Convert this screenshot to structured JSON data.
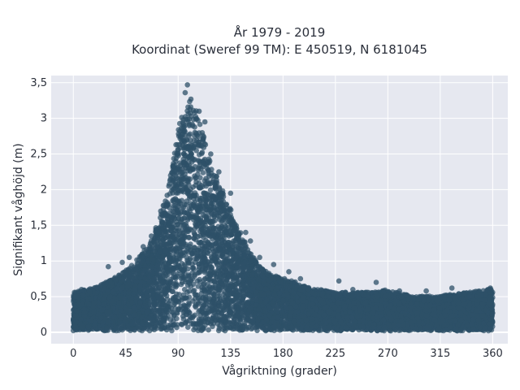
{
  "chart_data": {
    "type": "scatter",
    "title_lines": [
      "År 1979 - 2019",
      "Koordinat (Sweref 99 TM): E 450519, N 6181045"
    ],
    "xlabel": "Vågriktning (grader)",
    "ylabel": "Signifikant våghöjd (m)",
    "xlim": [
      -19,
      373
    ],
    "ylim": [
      -0.16,
      3.6
    ],
    "x_ticks": [
      0,
      45,
      90,
      135,
      180,
      225,
      270,
      315,
      360
    ],
    "x_tick_labels": [
      "0",
      "45",
      "90",
      "135",
      "180",
      "225",
      "270",
      "315",
      "360"
    ],
    "y_ticks": [
      0,
      0.5,
      1,
      1.5,
      2,
      2.5,
      3,
      3.5
    ],
    "y_tick_labels": [
      "0",
      "0,5",
      "1",
      "1,5",
      "2",
      "2,5",
      "3",
      "3,5"
    ],
    "grid": true,
    "marker_color": "#2e5068",
    "background_color": "#e6e8f0",
    "envelope": {
      "direction": [
        0,
        15,
        30,
        45,
        60,
        75,
        85,
        90,
        95,
        100,
        105,
        110,
        120,
        130,
        140,
        150,
        160,
        170,
        180,
        190,
        200,
        225,
        250,
        270,
        290,
        315,
        340,
        360
      ],
      "wave_height": [
        0.55,
        0.6,
        0.7,
        0.85,
        1.1,
        1.6,
        2.3,
        2.8,
        3.1,
        3.3,
        3.1,
        2.8,
        2.3,
        1.9,
        1.5,
        1.15,
        0.9,
        0.8,
        0.75,
        0.7,
        0.62,
        0.55,
        0.55,
        0.58,
        0.5,
        0.5,
        0.55,
        0.6
      ]
    },
    "notable_points": [
      {
        "x": 98,
        "y": 3.47
      },
      {
        "x": 96,
        "y": 3.36
      },
      {
        "x": 101,
        "y": 3.27
      },
      {
        "x": 108,
        "y": 3.1
      },
      {
        "x": 113,
        "y": 2.95
      },
      {
        "x": 118,
        "y": 2.5
      },
      {
        "x": 125,
        "y": 2.25
      },
      {
        "x": 135,
        "y": 1.95
      },
      {
        "x": 148,
        "y": 1.4
      },
      {
        "x": 152,
        "y": 1.28
      },
      {
        "x": 160,
        "y": 1.05
      },
      {
        "x": 172,
        "y": 0.95
      },
      {
        "x": 185,
        "y": 0.85
      },
      {
        "x": 195,
        "y": 0.75
      },
      {
        "x": 228,
        "y": 0.72
      },
      {
        "x": 240,
        "y": 0.6
      },
      {
        "x": 260,
        "y": 0.7
      },
      {
        "x": 280,
        "y": 0.58
      },
      {
        "x": 303,
        "y": 0.58
      },
      {
        "x": 325,
        "y": 0.62
      },
      {
        "x": 340,
        "y": 0.5
      },
      {
        "x": 358,
        "y": 0.62
      },
      {
        "x": 7,
        "y": 0.6
      },
      {
        "x": 28,
        "y": 0.7
      },
      {
        "x": 30,
        "y": 0.92
      },
      {
        "x": 42,
        "y": 0.98
      },
      {
        "x": 48,
        "y": 1.05
      },
      {
        "x": 60,
        "y": 1.2
      },
      {
        "x": 67,
        "y": 1.35
      },
      {
        "x": 75,
        "y": 1.7
      },
      {
        "x": 82,
        "y": 2.05
      },
      {
        "x": 88,
        "y": 2.4
      }
    ]
  }
}
